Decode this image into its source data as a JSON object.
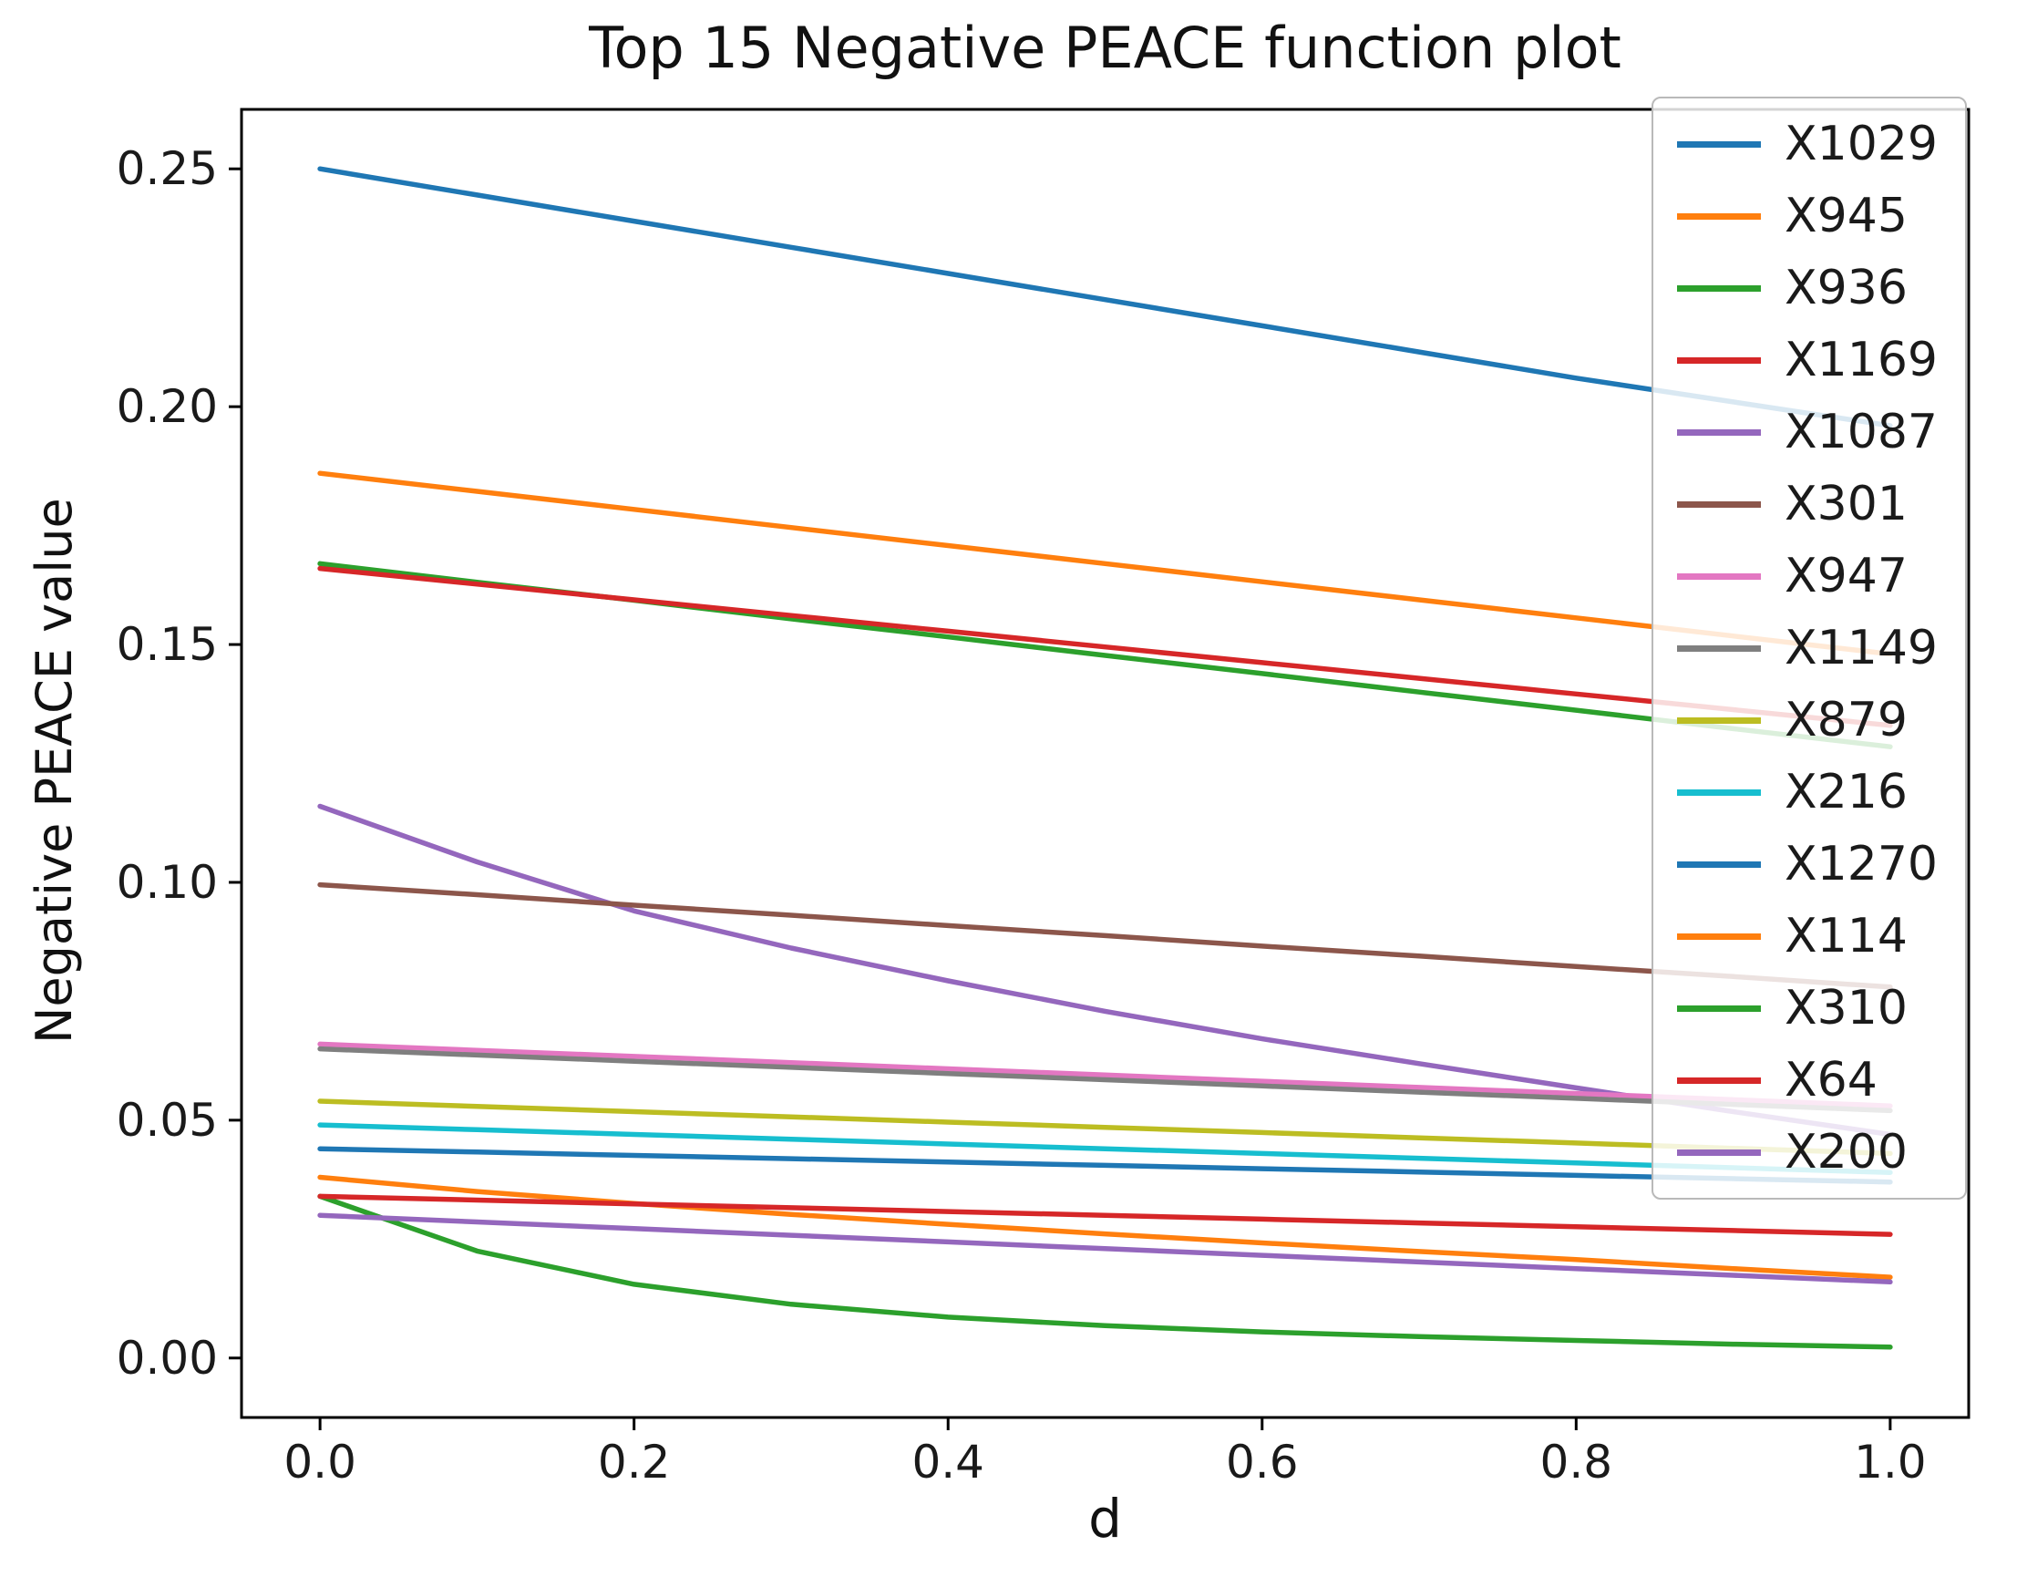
{
  "chart_data": {
    "type": "line",
    "title": "Top 15 Negative PEACE function plot",
    "xlabel": "d",
    "ylabel": "Negative PEACE value",
    "xlim": [
      -0.05,
      1.05
    ],
    "ylim": [
      -0.0125,
      0.2625
    ],
    "grid": false,
    "legend_position": "upper right",
    "axis_color": "#000000",
    "text_color": "#1a1a1a",
    "xticks": {
      "values": [
        0.0,
        0.2,
        0.4,
        0.6,
        0.8,
        1.0
      ],
      "labels": [
        "0.0",
        "0.2",
        "0.4",
        "0.6",
        "0.8",
        "1.0"
      ]
    },
    "yticks": {
      "values": [
        0.0,
        0.05,
        0.1,
        0.15,
        0.2,
        0.25
      ],
      "labels": [
        "0.00",
        "0.05",
        "0.10",
        "0.15",
        "0.20",
        "0.25"
      ]
    },
    "x": [
      0.0,
      0.1,
      0.2,
      0.3,
      0.4,
      0.5,
      0.6,
      0.7,
      0.8,
      0.9,
      1.0
    ],
    "series": [
      {
        "name": "X1029",
        "color": "#1f77b4",
        "values": [
          0.25,
          0.2445,
          0.239,
          0.2335,
          0.228,
          0.2225,
          0.217,
          0.2115,
          0.206,
          0.201,
          0.196
        ]
      },
      {
        "name": "X945",
        "color": "#ff7f0e",
        "values": [
          0.186,
          0.1822,
          0.1784,
          0.1746,
          0.1708,
          0.167,
          0.1632,
          0.1594,
          0.1556,
          0.1518,
          0.148
        ]
      },
      {
        "name": "X936",
        "color": "#2ca02c",
        "values": [
          0.167,
          0.1631,
          0.1593,
          0.1554,
          0.1516,
          0.1477,
          0.1439,
          0.14,
          0.1362,
          0.1323,
          0.1285
        ]
      },
      {
        "name": "X1169",
        "color": "#d62728",
        "values": [
          0.166,
          0.1627,
          0.1594,
          0.1561,
          0.1528,
          0.1495,
          0.1462,
          0.1429,
          0.1396,
          0.1363,
          0.133
        ]
      },
      {
        "name": "X1087",
        "color": "#9467bd",
        "values": [
          0.116,
          0.1043,
          0.094,
          0.0862,
          0.0793,
          0.0729,
          0.0671,
          0.0619,
          0.0568,
          0.0518,
          0.047
        ]
      },
      {
        "name": "X301",
        "color": "#8c564b",
        "values": [
          0.0995,
          0.0974,
          0.0952,
          0.0931,
          0.0909,
          0.0888,
          0.0866,
          0.0845,
          0.0823,
          0.0802,
          0.078
        ]
      },
      {
        "name": "X947",
        "color": "#e377c2",
        "values": [
          0.066,
          0.0647,
          0.0634,
          0.0621,
          0.0608,
          0.0595,
          0.0582,
          0.0569,
          0.0556,
          0.0543,
          0.053
        ]
      },
      {
        "name": "X1149",
        "color": "#7f7f7f",
        "values": [
          0.065,
          0.0637,
          0.0624,
          0.0611,
          0.0598,
          0.0585,
          0.0572,
          0.0559,
          0.0546,
          0.0533,
          0.052
        ]
      },
      {
        "name": "X879",
        "color": "#bcbd22",
        "values": [
          0.054,
          0.0529,
          0.0518,
          0.0507,
          0.0496,
          0.0485,
          0.0474,
          0.0463,
          0.0452,
          0.0441,
          0.043
        ]
      },
      {
        "name": "X216",
        "color": "#17becf",
        "values": [
          0.049,
          0.048,
          0.047,
          0.046,
          0.045,
          0.044,
          0.043,
          0.042,
          0.041,
          0.04,
          0.039
        ]
      },
      {
        "name": "X1270",
        "color": "#1f77b4",
        "values": [
          0.044,
          0.0433,
          0.0426,
          0.0419,
          0.0412,
          0.0405,
          0.0398,
          0.0391,
          0.0384,
          0.0377,
          0.037
        ]
      },
      {
        "name": "X114",
        "color": "#ff7f0e",
        "values": [
          0.038,
          0.035,
          0.0325,
          0.0302,
          0.0281,
          0.0261,
          0.0242,
          0.0224,
          0.0207,
          0.0188,
          0.017
        ]
      },
      {
        "name": "X310",
        "color": "#2ca02c",
        "values": [
          0.034,
          0.0225,
          0.0155,
          0.0113,
          0.0086,
          0.0068,
          0.0055,
          0.0045,
          0.0037,
          0.0029,
          0.0023
        ]
      },
      {
        "name": "X64",
        "color": "#d62728",
        "values": [
          0.034,
          0.0332,
          0.0324,
          0.0316,
          0.0308,
          0.03,
          0.0292,
          0.0284,
          0.0276,
          0.0268,
          0.026
        ]
      },
      {
        "name": "X200",
        "color": "#9467bd",
        "values": [
          0.03,
          0.0286,
          0.0272,
          0.0258,
          0.0244,
          0.023,
          0.0216,
          0.0202,
          0.0188,
          0.0174,
          0.016
        ]
      }
    ]
  }
}
